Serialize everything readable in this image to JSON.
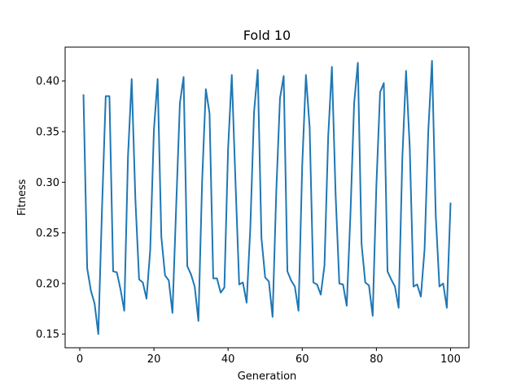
{
  "chart_data": {
    "type": "line",
    "title": "Fold 10",
    "xlabel": "Generation",
    "ylabel": "Fitness",
    "xlim": [
      -3.95,
      104.95
    ],
    "ylim": [
      0.1365,
      0.4335
    ],
    "xticks": [
      0,
      20,
      40,
      60,
      80,
      100
    ],
    "yticks": [
      0.15,
      0.2,
      0.25,
      0.3,
      0.35,
      0.4
    ],
    "xtick_labels": [
      "0",
      "20",
      "40",
      "60",
      "80",
      "100"
    ],
    "ytick_labels": [
      "0.15",
      "0.20",
      "0.25",
      "0.30",
      "0.35",
      "0.40"
    ],
    "grid": false,
    "line_color": "#1f77b4",
    "x": [
      1,
      2,
      3,
      4,
      5,
      6,
      7,
      8,
      9,
      10,
      11,
      12,
      13,
      14,
      15,
      16,
      17,
      18,
      19,
      20,
      21,
      22,
      23,
      24,
      25,
      26,
      27,
      28,
      29,
      30,
      31,
      32,
      33,
      34,
      35,
      36,
      37,
      38,
      39,
      40,
      41,
      42,
      43,
      44,
      45,
      46,
      47,
      48,
      49,
      50,
      51,
      52,
      53,
      54,
      55,
      56,
      57,
      58,
      59,
      60,
      61,
      62,
      63,
      64,
      65,
      66,
      67,
      68,
      69,
      70,
      71,
      72,
      73,
      74,
      75,
      76,
      77,
      78,
      79,
      80,
      81,
      82,
      83,
      84,
      85,
      86,
      87,
      88,
      89,
      90,
      91,
      92,
      93,
      94,
      95,
      96,
      97,
      98,
      99,
      100
    ],
    "series": [
      {
        "values": [
          0.386,
          0.215,
          0.193,
          0.18,
          0.15,
          0.274,
          0.385,
          0.385,
          0.212,
          0.211,
          0.194,
          0.173,
          0.325,
          0.402,
          0.283,
          0.204,
          0.201,
          0.185,
          0.233,
          0.352,
          0.402,
          0.246,
          0.208,
          0.203,
          0.171,
          0.276,
          0.378,
          0.404,
          0.217,
          0.209,
          0.197,
          0.163,
          0.301,
          0.392,
          0.368,
          0.205,
          0.205,
          0.191,
          0.196,
          0.333,
          0.406,
          0.3,
          0.199,
          0.201,
          0.181,
          0.255,
          0.369,
          0.411,
          0.245,
          0.206,
          0.202,
          0.167,
          0.291,
          0.383,
          0.405,
          0.212,
          0.203,
          0.197,
          0.173,
          0.317,
          0.406,
          0.354,
          0.201,
          0.199,
          0.189,
          0.218,
          0.345,
          0.414,
          0.288,
          0.2,
          0.199,
          0.178,
          0.268,
          0.378,
          0.418,
          0.239,
          0.201,
          0.198,
          0.168,
          0.297,
          0.389,
          0.398,
          0.212,
          0.204,
          0.197,
          0.176,
          0.324,
          0.41,
          0.334,
          0.197,
          0.199,
          0.187,
          0.234,
          0.351,
          0.42,
          0.268,
          0.197,
          0.2,
          0.176,
          0.279
        ]
      }
    ]
  }
}
